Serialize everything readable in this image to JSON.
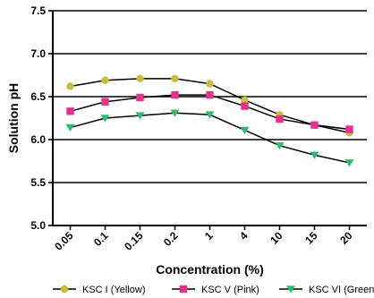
{
  "chart_data": {
    "type": "line",
    "categories": [
      "0.05",
      "0.1",
      "0.15",
      "0.2",
      "1",
      "4",
      "10",
      "15",
      "20"
    ],
    "xlabel": "Concentration (%)",
    "ylabel": "Solution pH",
    "ylim": [
      5.0,
      7.5
    ],
    "yticks": [
      "5.0",
      "5.5",
      "6.0",
      "6.5",
      "7.0",
      "7.5"
    ],
    "grid": "horizontal",
    "legend_position": "bottom",
    "series": [
      {
        "name": "KSC I (Yellow)",
        "color": "#c8be3c",
        "marker": "circle",
        "values": [
          6.62,
          6.69,
          6.71,
          6.71,
          6.65,
          6.46,
          6.29,
          6.17,
          6.08
        ]
      },
      {
        "name": "KSC V (Pink)",
        "color": "#e8318a",
        "marker": "square",
        "values": [
          6.33,
          6.44,
          6.49,
          6.52,
          6.52,
          6.39,
          6.24,
          6.17,
          6.12
        ]
      },
      {
        "name": "KSC VI (Green)",
        "color": "#2dbb6e",
        "marker": "triangle-down",
        "values": [
          6.14,
          6.25,
          6.28,
          6.31,
          6.29,
          6.11,
          5.93,
          5.82,
          5.73
        ]
      }
    ]
  }
}
